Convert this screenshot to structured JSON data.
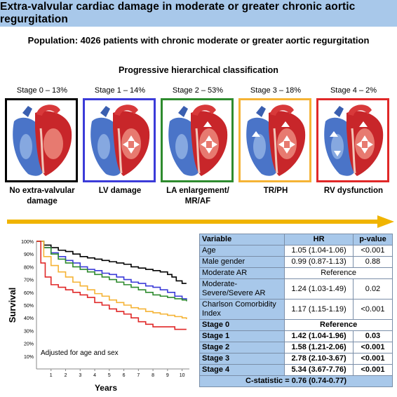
{
  "title": "Extra-valvular cardiac damage in moderate or greater chronic aortic regurgitation",
  "population": "Population: 4026 patients with chronic moderate or greater aortic regurgitation",
  "classification": "Progressive hierarchical classification",
  "stages": [
    {
      "label": "Stage 0 – 13%",
      "caption": "No extra-valvular damage",
      "color": "#000000"
    },
    {
      "label": "Stage 1 – 14%",
      "caption": "LV damage",
      "color": "#3b3bd8"
    },
    {
      "label": "Stage 2 – 53%",
      "caption": "LA enlargement/ MR/AF",
      "color": "#2e8b2e"
    },
    {
      "label": "Stage 3 – 18%",
      "caption": "TR/PH",
      "color": "#f5b335"
    },
    {
      "label": "Stage 4 – 2%",
      "caption": "RV dysfunction",
      "color": "#e02828"
    }
  ],
  "colors": {
    "title_bg": "#a8c8ea",
    "arrow": "#f0b400",
    "stage0": "#000000",
    "stage1": "#3b3bd8",
    "stage2": "#2e8b2e",
    "stage3": "#f5b335",
    "stage4": "#e02828"
  },
  "chart_data": {
    "type": "line",
    "ylabel": "Survival",
    "xlabel": "Years",
    "annotation": "Adjusted for age and sex",
    "xlim": [
      0,
      10.5
    ],
    "ylim": [
      0,
      100
    ],
    "xticks": [
      "1",
      "2",
      "3",
      "4",
      "5",
      "6",
      "7",
      "8",
      "9",
      "10"
    ],
    "yticks": [
      "10%",
      "20%",
      "30%",
      "40%",
      "50%",
      "60%",
      "70%",
      "80%",
      "90%",
      "100%"
    ],
    "grid": false,
    "series": [
      {
        "color": "#000000",
        "x": [
          0,
          0.5,
          1,
          1.5,
          2,
          2.5,
          3,
          3.5,
          4,
          4.5,
          5,
          5.5,
          6,
          6.5,
          7,
          7.5,
          8,
          8.5,
          9,
          9.3,
          9.6,
          10,
          10.3
        ],
        "y": [
          100,
          97,
          95,
          93,
          92,
          90,
          88,
          87,
          86,
          85,
          84,
          83,
          82,
          80,
          79,
          78,
          77,
          76,
          74,
          72,
          69,
          67,
          67
        ]
      },
      {
        "color": "#3b3bd8",
        "x": [
          0,
          0.5,
          1,
          1.5,
          2,
          2.5,
          3,
          3.5,
          4,
          4.5,
          5,
          5.5,
          6,
          6.5,
          7,
          7.5,
          8,
          8.5,
          9,
          9.5,
          10,
          10.3
        ],
        "y": [
          100,
          95,
          91,
          88,
          85,
          83,
          80,
          78,
          77,
          75,
          74,
          72,
          70,
          68,
          67,
          65,
          64,
          62,
          60,
          57,
          55,
          53
        ]
      },
      {
        "color": "#2e8b2e",
        "x": [
          0,
          0.5,
          1,
          1.5,
          2,
          2.5,
          3,
          3.5,
          4,
          4.5,
          5,
          5.5,
          6,
          6.5,
          7,
          7.5,
          8,
          8.5,
          9,
          9.5,
          10,
          10.3
        ],
        "y": [
          100,
          95,
          90,
          86,
          83,
          80,
          78,
          76,
          74,
          72,
          70,
          68,
          66,
          64,
          62,
          60,
          58,
          57,
          56,
          55,
          54,
          53
        ]
      },
      {
        "color": "#f5b335",
        "x": [
          0,
          0.5,
          1,
          1.5,
          2,
          2.5,
          3,
          3.5,
          4,
          4.5,
          5,
          5.5,
          6,
          6.5,
          7,
          7.5,
          8,
          8.5,
          9,
          9.5,
          10,
          10.3
        ],
        "y": [
          100,
          88,
          81,
          76,
          72,
          68,
          65,
          62,
          59,
          57,
          54,
          52,
          50,
          48,
          47,
          45,
          44,
          43,
          42,
          41,
          40,
          39
        ]
      },
      {
        "color": "#e02828",
        "x": [
          0,
          0.3,
          0.6,
          1,
          1.5,
          2,
          2.5,
          3,
          3.5,
          4,
          4.5,
          5,
          5.5,
          6,
          6.5,
          7,
          7.5,
          8,
          8.5,
          9,
          9.5,
          10,
          10.3
        ],
        "y": [
          100,
          83,
          72,
          66,
          64,
          62,
          60,
          58,
          56,
          52,
          50,
          47,
          45,
          43,
          40,
          37,
          35,
          33,
          33,
          33,
          31,
          31,
          31
        ]
      }
    ]
  },
  "table": {
    "headers": [
      "Variable",
      "HR",
      "p-value"
    ],
    "rows": [
      {
        "var": "Age",
        "hr": "1.05 (1.04-1.06)",
        "p": "<0.001"
      },
      {
        "var": "Male gender",
        "hr": "0.99 (0.87-1.13)",
        "p": "0.88"
      },
      {
        "var": "Moderate AR",
        "ref": "Reference"
      },
      {
        "var": "Moderate-Severe/Severe AR",
        "hr": "1.24 (1.03-1.49)",
        "p": "0.02"
      },
      {
        "var": "Charlson Comorbidity Index",
        "hr": "1.17 (1.15-1.19)",
        "p": "<0.001"
      },
      {
        "var": "Stage 0",
        "ref": "Reference",
        "bold": true
      },
      {
        "var": "Stage 1",
        "hr": "1.42 (1.04-1.96)",
        "p": "0.03",
        "bold": true
      },
      {
        "var": "Stage 2",
        "hr": "1.58 (1.21-2.06)",
        "p": "<0.001",
        "bold": true
      },
      {
        "var": "Stage 3",
        "hr": "2.78 (2.10-3.67)",
        "p": "<0.001",
        "bold": true
      },
      {
        "var": "Stage 4",
        "hr": "5.34 (3.67-7.76)",
        "p": "<0.001",
        "bold": true
      }
    ],
    "cstatistic": "C-statistic = 0.76 (0.74-0.77)"
  }
}
